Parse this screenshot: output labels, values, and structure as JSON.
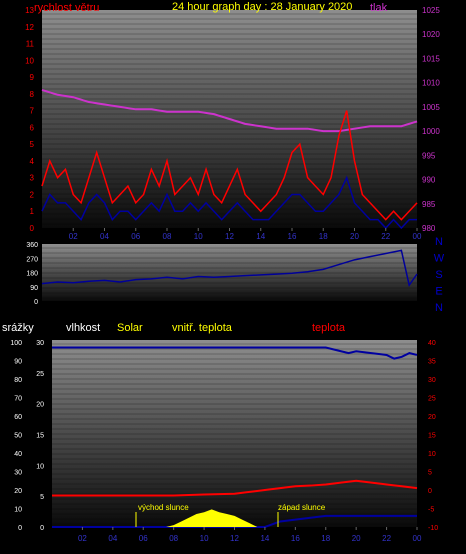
{
  "title": "24 hour graph day : 28 January 2020",
  "colors": {
    "red": "#ff0000",
    "magenta": "#cc33cc",
    "blue": "#0000a0",
    "yellow": "#ffff00",
    "wind_dir": "#000099"
  },
  "x_ticks": [
    "02",
    "04",
    "06",
    "08",
    "10",
    "12",
    "14",
    "16",
    "18",
    "20",
    "22",
    "00"
  ],
  "chart_data": [
    {
      "type": "line",
      "name": "wind-pressure",
      "labels": {
        "left": "rychlost větru",
        "right": "tlak"
      },
      "left_axis": {
        "min": 0,
        "max": 13,
        "ticks": [
          "0",
          "1",
          "2",
          "3",
          "4",
          "5",
          "6",
          "7",
          "8",
          "9",
          "10",
          "11",
          "12",
          "13"
        ]
      },
      "right_axis": {
        "min": 980,
        "max": 1025,
        "ticks": [
          "980",
          "985",
          "990",
          "995",
          "1000",
          "1005",
          "1010",
          "1015",
          "1020",
          "1025"
        ]
      },
      "x_range_hours": [
        0,
        24
      ],
      "series": [
        {
          "axis": "right",
          "color": "magenta",
          "x": [
            0,
            1,
            2,
            3,
            4,
            5,
            6,
            7,
            8,
            9,
            10,
            11,
            12,
            13,
            14,
            15,
            16,
            17,
            18,
            19,
            20,
            21,
            22,
            23,
            24
          ],
          "y": [
            1008.5,
            1007.5,
            1007,
            1006,
            1005.5,
            1005,
            1004.5,
            1004.5,
            1004,
            1004,
            1004,
            1003.5,
            1002.5,
            1001.5,
            1001,
            1000.5,
            1000.5,
            1000.5,
            1000,
            1000,
            1000.5,
            1001,
            1001,
            1001,
            1002
          ]
        },
        {
          "axis": "left",
          "color": "red",
          "x": [
            0,
            0.5,
            1,
            1.5,
            2,
            2.5,
            3,
            3.5,
            4,
            4.5,
            5,
            5.5,
            6,
            6.5,
            7,
            7.5,
            8,
            8.5,
            9,
            9.5,
            10,
            10.5,
            11,
            11.5,
            12,
            12.5,
            13,
            13.5,
            14,
            14.5,
            15,
            15.5,
            16,
            16.5,
            17,
            17.5,
            18,
            18.5,
            19,
            19.5,
            20,
            20.5,
            21,
            21.5,
            22,
            22.5,
            23,
            23.5,
            24
          ],
          "y": [
            2.5,
            4,
            3,
            3.5,
            2,
            1.5,
            3,
            4.5,
            3,
            1.5,
            2,
            2.5,
            1.5,
            2,
            3.5,
            2.5,
            4,
            2,
            2.5,
            3,
            2,
            3.5,
            2,
            1.5,
            2.5,
            3.5,
            2,
            1.5,
            1,
            1.5,
            2,
            3,
            4.5,
            5,
            3,
            2.5,
            2,
            3,
            5.5,
            7,
            4,
            2,
            1.5,
            1,
            0.5,
            1,
            0.5,
            1,
            1.5
          ]
        },
        {
          "axis": "left",
          "color": "blue",
          "x": [
            0,
            0.5,
            1,
            1.5,
            2,
            2.5,
            3,
            3.5,
            4,
            4.5,
            5,
            5.5,
            6,
            6.5,
            7,
            7.5,
            8,
            8.5,
            9,
            9.5,
            10,
            10.5,
            11,
            11.5,
            12,
            12.5,
            13,
            13.5,
            14,
            14.5,
            15,
            15.5,
            16,
            16.5,
            17,
            17.5,
            18,
            18.5,
            19,
            19.5,
            20,
            20.5,
            21,
            21.5,
            22,
            22.5,
            23,
            23.5,
            24
          ],
          "y": [
            1,
            2,
            1.5,
            1.5,
            1,
            0.5,
            1.5,
            2,
            1.5,
            0.5,
            1,
            1,
            0.5,
            1,
            1.5,
            1,
            2,
            1,
            1,
            1.5,
            1,
            1.5,
            1,
            0.5,
            1,
            1.5,
            1,
            0.5,
            0.5,
            0.5,
            1,
            1.5,
            2,
            2,
            1.5,
            1,
            1,
            1.5,
            2,
            3,
            1.5,
            1,
            0.5,
            0.5,
            0,
            0.5,
            0,
            0.5,
            0.5
          ]
        }
      ]
    },
    {
      "type": "line",
      "name": "wind-direction",
      "left_axis": {
        "min": 0,
        "max": 360,
        "ticks": [
          "0",
          "90",
          "180",
          "270",
          "360"
        ]
      },
      "compass": [
        "N",
        "W",
        "S",
        "E",
        "N"
      ],
      "x_range_hours": [
        0,
        24
      ],
      "series": [
        {
          "color": "wind_dir",
          "x": [
            0,
            1,
            2,
            3,
            4,
            5,
            6,
            7,
            8,
            9,
            10,
            11,
            12,
            13,
            14,
            15,
            16,
            17,
            18,
            19,
            20,
            21,
            22,
            23,
            23.5,
            24
          ],
          "y": [
            110,
            120,
            115,
            125,
            130,
            120,
            135,
            140,
            150,
            140,
            155,
            150,
            155,
            160,
            165,
            170,
            175,
            185,
            200,
            230,
            260,
            280,
            300,
            320,
            100,
            170
          ]
        }
      ]
    },
    {
      "type": "line",
      "name": "rain-humidity-solar-temperature",
      "labels": {
        "rain": "srážky",
        "humidity": "vlhkost",
        "solar": "Solar",
        "indoor": "vnitř. teplota",
        "temp": "teplota"
      },
      "axis_rain": {
        "ticks": [
          "0",
          "10",
          "20",
          "30",
          "40",
          "50",
          "60",
          "70",
          "80",
          "90",
          "100"
        ]
      },
      "axis_humidity": {
        "ticks": [
          "0",
          "5",
          "10",
          "15",
          "20",
          "25",
          "30"
        ]
      },
      "axis_temp": {
        "min": -10,
        "max": 40,
        "ticks": [
          "-10",
          "-5",
          "0",
          "5",
          "10",
          "15",
          "20",
          "25",
          "30",
          "35",
          "40"
        ]
      },
      "annotations": [
        "východ slunce",
        "západ slunce"
      ],
      "x_range_hours": [
        0,
        24
      ],
      "series": [
        {
          "axis": "rain",
          "color": "blue",
          "x": [
            0,
            4,
            8,
            12,
            16,
            18,
            18.5,
            19,
            19.5,
            20,
            21,
            22,
            22.5,
            23,
            23.5,
            24
          ],
          "y": [
            97,
            97,
            97,
            97,
            97,
            97,
            96,
            95,
            94,
            95,
            94,
            93,
            91,
            92,
            94,
            93
          ]
        },
        {
          "axis": "temp",
          "color": "red",
          "x": [
            0,
            2,
            4,
            6,
            8,
            10,
            12,
            13,
            14,
            15,
            16,
            17,
            18,
            19,
            20,
            21,
            22,
            23,
            24
          ],
          "y": [
            -1.5,
            -1.5,
            -1.5,
            -1.5,
            -1.5,
            -1.2,
            -1,
            -0.5,
            0,
            0.5,
            1,
            1.2,
            1.5,
            2,
            2.5,
            2,
            1.5,
            1,
            0.5
          ]
        },
        {
          "axis": "rain",
          "color": "blue",
          "x": [
            0,
            12,
            14,
            15,
            16,
            17,
            18,
            19,
            20,
            21,
            22,
            23,
            24
          ],
          "y": [
            0,
            0,
            0,
            3,
            4,
            5,
            6,
            6,
            6,
            6,
            6,
            6,
            6
          ]
        },
        {
          "axis": "solar",
          "color": "yellow",
          "fill": true,
          "x": [
            7.5,
            8,
            8.5,
            9,
            9.5,
            10,
            10.5,
            11,
            11.5,
            12,
            12.5,
            13,
            13.5
          ],
          "y": [
            0,
            1,
            3,
            5,
            7,
            8,
            9.5,
            8,
            7,
            6,
            4,
            2,
            0
          ]
        }
      ]
    }
  ]
}
